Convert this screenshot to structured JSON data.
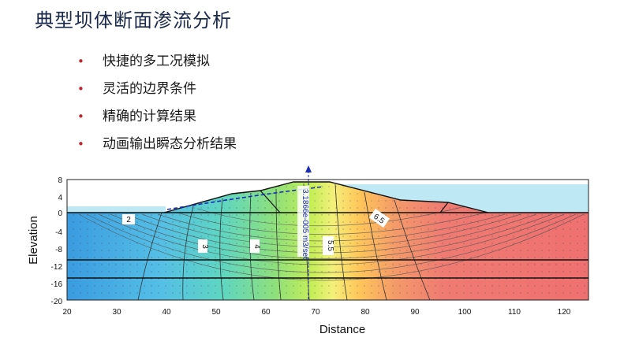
{
  "title": "典型坝体断面渗流分析",
  "bullets": [
    {
      "marker": "•",
      "text": "快捷的多工况模拟"
    },
    {
      "marker": "•",
      "text": "灵活的边界条件"
    },
    {
      "marker": "•",
      "text": "精确的计算结果"
    },
    {
      "marker": "•",
      "text": "动画输出瞬态分析结果"
    }
  ],
  "chart_data": {
    "type": "contour",
    "xlabel": "Distance",
    "ylabel": "Elevation",
    "xlim": [
      20,
      125
    ],
    "ylim": [
      -20,
      8
    ],
    "x_ticks": [
      "20",
      "30",
      "40",
      "50",
      "60",
      "70",
      "80",
      "90",
      "100",
      "110",
      "120"
    ],
    "y_ticks": [
      "8",
      "4",
      "0",
      "-4",
      "-8",
      "-12",
      "-16",
      "-20"
    ],
    "contour_labels": [
      "2",
      "3",
      "4",
      "5.5",
      "6.5"
    ],
    "flux_label": "3.1866e-005 m3/sec",
    "colors": {
      "low": "#4aa8e8",
      "mid_low": "#5fd0b8",
      "mid": "#a8e45a",
      "high": "#ffd24a",
      "highest": "#f07070",
      "water": "#bfe8f5"
    }
  }
}
